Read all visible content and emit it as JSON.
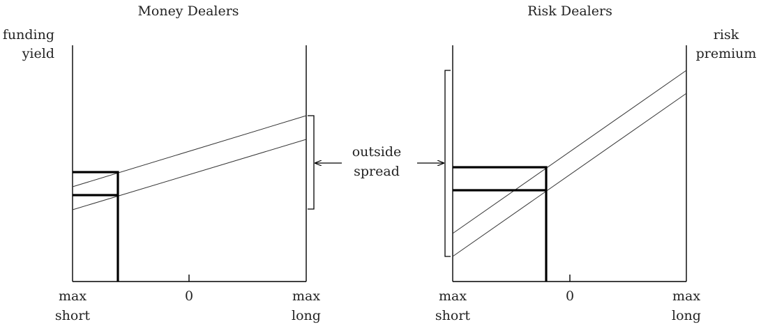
{
  "money_dealers": {
    "title": "Money Dealers",
    "y_label_line1": "funding",
    "y_label_line2": "yield",
    "x_left_line1": "max",
    "x_left_line2": "short",
    "x_mid": "0",
    "x_right_line1": "max",
    "x_right_line2": "long"
  },
  "risk_dealers": {
    "title": "Risk Dealers",
    "y_label_line1": "risk",
    "y_label_line2": "premium",
    "x_left_line1": "max",
    "x_left_line2": "short",
    "x_mid": "0",
    "x_right_line1": "max",
    "x_right_line2": "long"
  },
  "center_label": {
    "line1": "outside",
    "line2": "spread"
  }
}
